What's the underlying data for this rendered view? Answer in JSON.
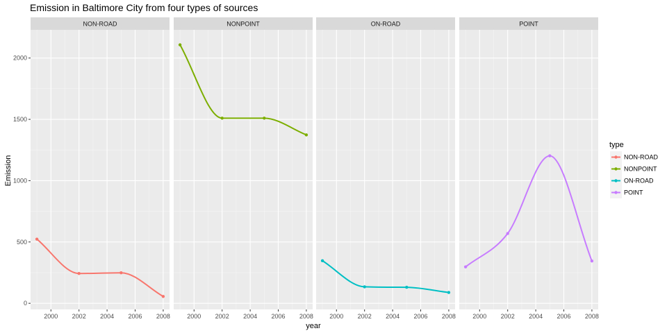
{
  "chart_data": {
    "type": "line",
    "title": "Emission in Baltimore City from four types of sources",
    "xlabel": "year",
    "ylabel": "Emission",
    "x": [
      1999,
      2002,
      2005,
      2008
    ],
    "xlim": [
      1998.55,
      2008.45
    ],
    "ylim": [
      -50,
      2230
    ],
    "x_ticks": [
      2000,
      2002,
      2004,
      2006,
      2008
    ],
    "y_ticks": [
      0,
      500,
      1000,
      1500,
      2000
    ],
    "facets": [
      "NON-ROAD",
      "NONPOINT",
      "ON-ROAD",
      "POINT"
    ],
    "series": [
      {
        "name": "NON-ROAD",
        "color": "#F8766D",
        "values": [
          522.94,
          242.85,
          248.93,
          55.82
        ]
      },
      {
        "name": "NONPOINT",
        "color": "#7CAE00",
        "values": [
          2107.63,
          1509.5,
          1509.5,
          1373.21
        ]
      },
      {
        "name": "ON-ROAD",
        "color": "#00BFC4",
        "values": [
          346.82,
          134.31,
          130.43,
          88.28
        ]
      },
      {
        "name": "POINT",
        "color": "#C77CFF",
        "values": [
          296.8,
          569.26,
          1202.49,
          344.98
        ]
      }
    ],
    "legend": {
      "title": "type",
      "position": "right"
    },
    "grid": true
  }
}
